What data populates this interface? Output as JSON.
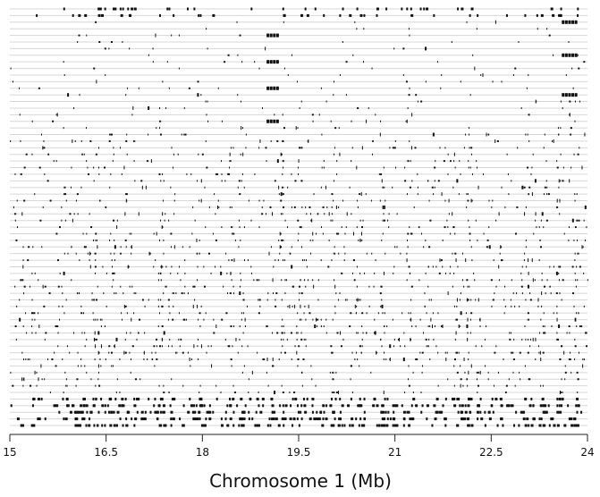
{
  "chart_data": {
    "type": "scatter",
    "title": "",
    "xlabel": "Chromosome 1 (Mb)",
    "ylabel": "",
    "xlim": [
      15,
      24
    ],
    "x_ticks": [
      15,
      16.5,
      18,
      19.5,
      21,
      22.5,
      24
    ],
    "x_tick_labels": [
      "15",
      "16.5",
      "18",
      "19.5",
      "21",
      "22.5",
      "24"
    ],
    "rows": 64,
    "grid": true,
    "colors": {
      "mark": "#111111",
      "grid": "#d7d7d7",
      "axis": "#222222"
    }
  }
}
